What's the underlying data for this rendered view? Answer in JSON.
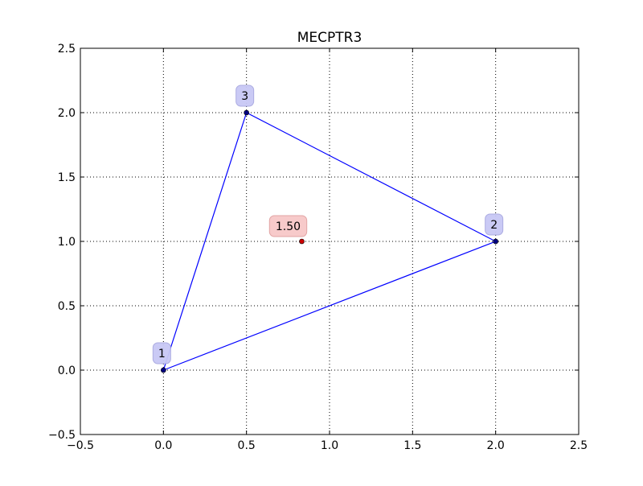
{
  "chart_data": {
    "type": "scatter",
    "title": "MECPTR3",
    "xlabel": "",
    "ylabel": "",
    "xlim": [
      -0.5,
      2.5
    ],
    "ylim": [
      -0.5,
      2.5
    ],
    "x_ticks": [
      -0.5,
      0.0,
      0.5,
      1.0,
      1.5,
      2.0,
      2.5
    ],
    "x_tick_labels": [
      "−0.5",
      "0.0",
      "0.5",
      "1.0",
      "1.5",
      "2.0",
      "2.5"
    ],
    "y_ticks": [
      -0.5,
      0.0,
      0.5,
      1.0,
      1.5,
      2.0,
      2.5
    ],
    "y_tick_labels": [
      "−0.5",
      "0.0",
      "0.5",
      "1.0",
      "1.5",
      "2.0",
      "2.5"
    ],
    "grid": true,
    "grid_style": "dotted",
    "nodes": [
      {
        "label": "1",
        "x": 0.0,
        "y": 0.0
      },
      {
        "label": "2",
        "x": 2.0,
        "y": 1.0
      },
      {
        "label": "3",
        "x": 0.5,
        "y": 2.0
      }
    ],
    "polygon_order": [
      0,
      1,
      2,
      0
    ],
    "centroid": {
      "label": "1.50",
      "x": 0.833,
      "y": 1.0
    },
    "colors": {
      "edge": "#0000ff",
      "node_fill": "#000080",
      "node_label_bg": "#c8c8f5",
      "node_label_border": "#a8a8e0",
      "centroid_fill": "#cc0000",
      "centroid_label_bg": "#f7c8c8",
      "centroid_label_border": "#e0a0a0",
      "grid": "#000000",
      "axes": "#000000"
    }
  }
}
